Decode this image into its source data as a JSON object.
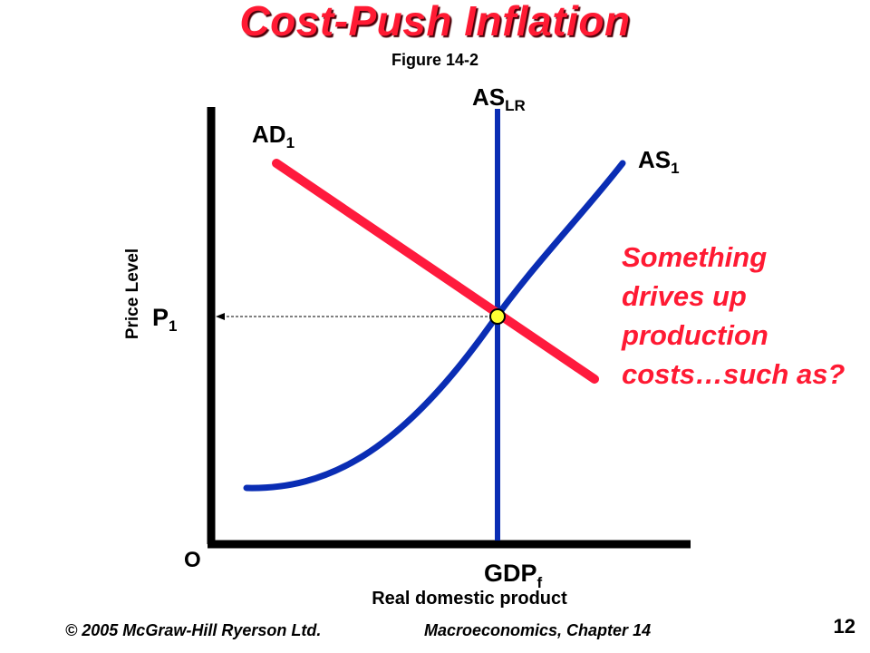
{
  "title": "Cost-Push Inflation",
  "subtitle": "Figure 14-2",
  "diagram": {
    "y_axis_label": "Price Level",
    "x_axis_label": "Real domestic product",
    "origin_label": "O",
    "price_label": {
      "main": "P",
      "sub": "1"
    },
    "gdp_label": {
      "main": "GDP",
      "sub": "f"
    },
    "curves": {
      "ad": {
        "main": "AD",
        "sub": "1",
        "color": "#ff1a3d"
      },
      "as": {
        "main": "AS",
        "sub": "1",
        "color": "#0a2db4"
      },
      "aslr": {
        "main": "AS",
        "sub": "LR",
        "color": "#0a2db4"
      }
    },
    "equilibrium_color": "#ffff33"
  },
  "note": "Something drives up production costs…such as?",
  "footer": {
    "copyright": "© 2005 McGraw-Hill Ryerson Ltd.",
    "course": "Macroeconomics, Chapter 14",
    "page": "12"
  },
  "colors": {
    "accent": "#ff1a33",
    "axis": "#000000",
    "background": "#ffffff"
  }
}
